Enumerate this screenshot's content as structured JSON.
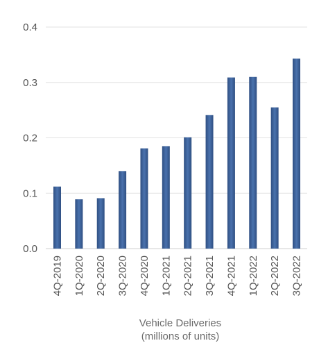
{
  "chart_data": {
    "type": "bar",
    "categories": [
      "4Q-2019",
      "1Q-2020",
      "2Q-2020",
      "3Q-2020",
      "4Q-2020",
      "1Q-2021",
      "2Q-2021",
      "3Q-2021",
      "4Q-2021",
      "1Q-2022",
      "2Q-2022",
      "3Q-2022"
    ],
    "values": [
      0.112,
      0.089,
      0.091,
      0.14,
      0.181,
      0.185,
      0.201,
      0.241,
      0.309,
      0.31,
      0.255,
      0.343
    ],
    "yticks": [
      "0.0",
      "0.1",
      "0.2",
      "0.3",
      "0.4"
    ],
    "ylim": [
      0,
      0.4
    ],
    "xlabel": [
      "Vehicle Deliveries",
      "(millions of units)"
    ],
    "ylabel": "",
    "title": "",
    "grid": true,
    "bar_color": "#3e64a0",
    "bar_color_edge": "#2f4f82",
    "grid_color": "#e2e2e2"
  }
}
